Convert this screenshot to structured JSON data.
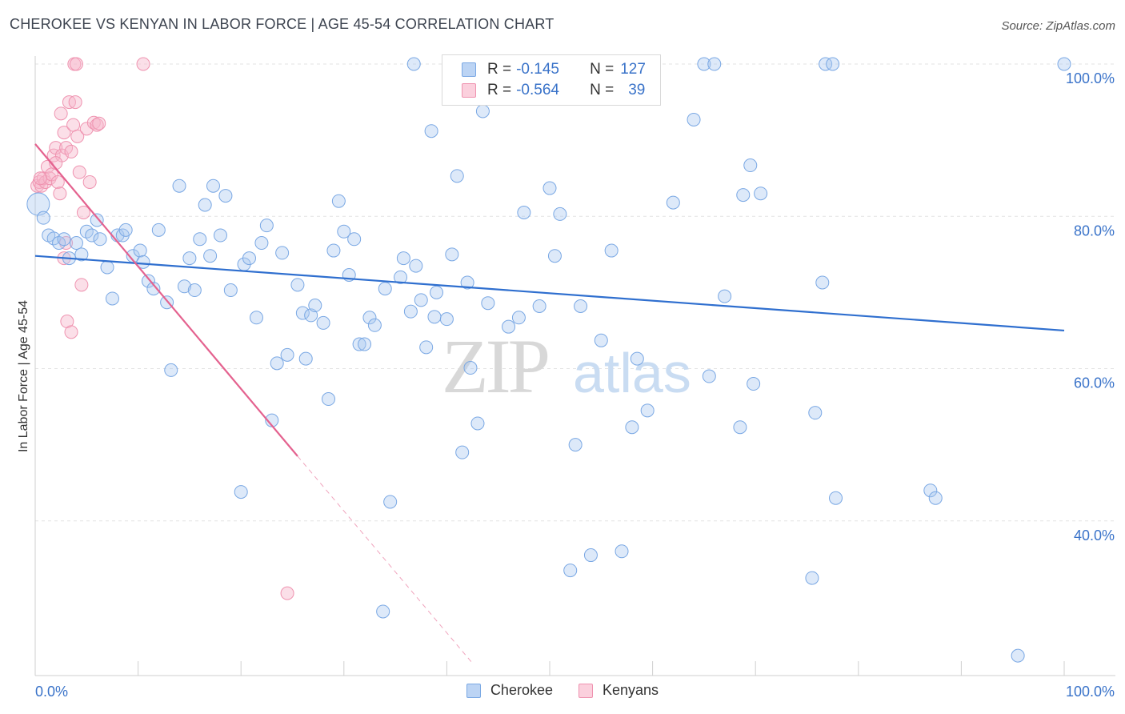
{
  "header": {
    "title": "CHEROKEE VS KENYAN IN LABOR FORCE | AGE 45-54 CORRELATION CHART",
    "source": "Source: ZipAtlas.com"
  },
  "watermark": {
    "zip": "ZIP",
    "atlas": "atlas"
  },
  "legend": {
    "rows": [
      {
        "r_label": "R =",
        "r_value": "-0.145",
        "n_label": "N =",
        "n_value": "127",
        "color": "#a9c8f0",
        "border": "#7aa8e4"
      },
      {
        "r_label": "R =",
        "r_value": "-0.564",
        "n_label": "N =",
        "n_value": "39",
        "color": "#f7b9cc",
        "border": "#ef93b0"
      }
    ],
    "bottom": [
      "Cherokee",
      "Kenyans"
    ]
  },
  "chart_data": {
    "type": "scatter",
    "title": "CHEROKEE VS KENYAN IN LABOR FORCE | AGE 45-54 CORRELATION CHART",
    "xlabel": "",
    "ylabel": "In Labor Force | Age 45-54",
    "xlim": [
      0,
      100
    ],
    "ylim": [
      20,
      102
    ],
    "x_tick_labels": [
      "0.0%",
      "100.0%"
    ],
    "y_ticks": [
      40,
      60,
      80,
      100
    ],
    "y_tick_labels": [
      "40.0%",
      "60.0%",
      "80.0%",
      "100.0%"
    ],
    "grid": true,
    "legend_position": "top-center",
    "colors": {
      "cherokee": "#6f9ee0",
      "kenyans": "#ef8fb0",
      "cherokee_line": "#2f6fcf",
      "kenyans_line": "#e4628f"
    },
    "series": [
      {
        "name": "Cherokee",
        "r": -0.145,
        "n": 127,
        "trend": {
          "x": [
            0,
            100
          ],
          "y": [
            74.8,
            65.0
          ]
        },
        "points": [
          [
            0.3,
            81.6
          ],
          [
            0.8,
            79.8
          ],
          [
            1.3,
            77.5
          ],
          [
            1.8,
            77.1
          ],
          [
            2.3,
            76.5
          ],
          [
            2.8,
            77.0
          ],
          [
            3.3,
            74.5
          ],
          [
            4.0,
            76.5
          ],
          [
            4.5,
            75.0
          ],
          [
            5.0,
            78.0
          ],
          [
            5.5,
            77.5
          ],
          [
            6.0,
            79.5
          ],
          [
            6.3,
            77.0
          ],
          [
            7.0,
            73.3
          ],
          [
            7.5,
            69.2
          ],
          [
            8.0,
            77.5
          ],
          [
            8.5,
            77.5
          ],
          [
            8.8,
            78.2
          ],
          [
            9.5,
            74.8
          ],
          [
            10.2,
            75.5
          ],
          [
            10.5,
            74.0
          ],
          [
            11.0,
            71.5
          ],
          [
            11.5,
            70.5
          ],
          [
            12.0,
            78.2
          ],
          [
            12.8,
            68.7
          ],
          [
            13.2,
            59.8
          ],
          [
            14.0,
            84.0
          ],
          [
            14.5,
            70.8
          ],
          [
            15.0,
            74.5
          ],
          [
            15.5,
            70.3
          ],
          [
            16.0,
            77.0
          ],
          [
            16.5,
            81.5
          ],
          [
            17.0,
            74.8
          ],
          [
            17.3,
            84.0
          ],
          [
            18.0,
            77.5
          ],
          [
            18.5,
            82.7
          ],
          [
            19.0,
            70.3
          ],
          [
            20.0,
            43.8
          ],
          [
            20.3,
            73.7
          ],
          [
            20.8,
            74.5
          ],
          [
            21.5,
            66.7
          ],
          [
            22.0,
            76.5
          ],
          [
            22.5,
            78.8
          ],
          [
            23.0,
            53.2
          ],
          [
            23.5,
            60.7
          ],
          [
            24.0,
            75.2
          ],
          [
            24.5,
            61.8
          ],
          [
            25.5,
            71.0
          ],
          [
            26.0,
            67.3
          ],
          [
            26.3,
            61.3
          ],
          [
            26.8,
            67.0
          ],
          [
            27.2,
            68.3
          ],
          [
            28.0,
            66.0
          ],
          [
            28.5,
            56.0
          ],
          [
            29.0,
            75.5
          ],
          [
            29.5,
            82.0
          ],
          [
            30.0,
            78.0
          ],
          [
            30.5,
            72.3
          ],
          [
            31.0,
            77.0
          ],
          [
            31.5,
            63.2
          ],
          [
            32.0,
            63.2
          ],
          [
            32.5,
            66.7
          ],
          [
            33.0,
            65.7
          ],
          [
            33.8,
            28.1
          ],
          [
            34.0,
            70.5
          ],
          [
            34.5,
            42.5
          ],
          [
            35.5,
            72.0
          ],
          [
            35.8,
            74.5
          ],
          [
            36.5,
            67.5
          ],
          [
            36.8,
            100.0
          ],
          [
            37.0,
            73.5
          ],
          [
            37.5,
            69.0
          ],
          [
            38.0,
            62.8
          ],
          [
            38.5,
            91.2
          ],
          [
            38.8,
            66.8
          ],
          [
            39.0,
            70.0
          ],
          [
            40.0,
            66.5
          ],
          [
            40.5,
            75.0
          ],
          [
            41.0,
            85.3
          ],
          [
            41.5,
            49.0
          ],
          [
            42.0,
            71.3
          ],
          [
            42.3,
            60.1
          ],
          [
            43.0,
            52.8
          ],
          [
            43.5,
            93.8
          ],
          [
            44.0,
            68.6
          ],
          [
            44.3,
            100.0
          ],
          [
            46.0,
            65.5
          ],
          [
            47.0,
            66.7
          ],
          [
            47.5,
            80.5
          ],
          [
            49.0,
            68.2
          ],
          [
            50.0,
            83.7
          ],
          [
            50.5,
            74.8
          ],
          [
            51.0,
            80.3
          ],
          [
            52.0,
            33.5
          ],
          [
            52.5,
            50.0
          ],
          [
            53.0,
            68.2
          ],
          [
            53.5,
            100.0
          ],
          [
            54.0,
            35.5
          ],
          [
            55.0,
            63.7
          ],
          [
            56.0,
            75.5
          ],
          [
            57.0,
            36.0
          ],
          [
            58.0,
            52.3
          ],
          [
            58.5,
            61.3
          ],
          [
            59.5,
            54.5
          ],
          [
            62.0,
            81.8
          ],
          [
            64.0,
            92.7
          ],
          [
            65.0,
            100.0
          ],
          [
            65.5,
            59.0
          ],
          [
            66.0,
            100.0
          ],
          [
            67.0,
            69.5
          ],
          [
            68.5,
            52.3
          ],
          [
            68.8,
            82.8
          ],
          [
            69.5,
            86.7
          ],
          [
            69.8,
            58.0
          ],
          [
            70.5,
            83.0
          ],
          [
            75.5,
            32.5
          ],
          [
            75.8,
            54.2
          ],
          [
            76.5,
            71.3
          ],
          [
            76.8,
            100.0
          ],
          [
            77.5,
            100.0
          ],
          [
            77.8,
            43.0
          ],
          [
            87.0,
            44.0
          ],
          [
            87.5,
            43.0
          ],
          [
            95.5,
            22.3
          ],
          [
            100.0,
            100.0
          ]
        ]
      },
      {
        "name": "Kenyans",
        "r": -0.564,
        "n": 39,
        "trend": {
          "x": [
            0,
            25.5
          ],
          "y": [
            89.5,
            48.5
          ]
        },
        "trend_dashed": {
          "x": [
            25.5,
            42.5
          ],
          "y": [
            48.5,
            21.3
          ]
        },
        "points": [
          [
            0.2,
            84.0
          ],
          [
            0.4,
            84.5
          ],
          [
            0.6,
            84.0
          ],
          [
            0.8,
            85.0
          ],
          [
            1.0,
            84.5
          ],
          [
            1.2,
            86.5
          ],
          [
            1.4,
            85.0
          ],
          [
            1.6,
            85.5
          ],
          [
            1.8,
            88.0
          ],
          [
            2.0,
            89.0
          ],
          [
            2.2,
            84.5
          ],
          [
            2.4,
            83.0
          ],
          [
            2.6,
            88.0
          ],
          [
            2.0,
            87.0
          ],
          [
            2.8,
            74.5
          ],
          [
            3.0,
            76.5
          ],
          [
            2.5,
            93.5
          ],
          [
            2.8,
            91.0
          ],
          [
            3.0,
            89.0
          ],
          [
            3.3,
            95.0
          ],
          [
            3.5,
            88.5
          ],
          [
            3.7,
            92.0
          ],
          [
            3.9,
            95.0
          ],
          [
            4.1,
            90.5
          ],
          [
            4.3,
            85.8
          ],
          [
            4.5,
            71.0
          ],
          [
            4.7,
            80.5
          ],
          [
            5.0,
            91.5
          ],
          [
            5.3,
            84.5
          ],
          [
            5.7,
            92.3
          ],
          [
            6.0,
            92.0
          ],
          [
            6.2,
            92.2
          ],
          [
            3.1,
            66.2
          ],
          [
            3.5,
            64.8
          ],
          [
            3.8,
            100.0
          ],
          [
            4.0,
            100.0
          ],
          [
            10.5,
            100.0
          ],
          [
            24.5,
            30.5
          ],
          [
            0.5,
            85.0
          ]
        ]
      }
    ]
  }
}
